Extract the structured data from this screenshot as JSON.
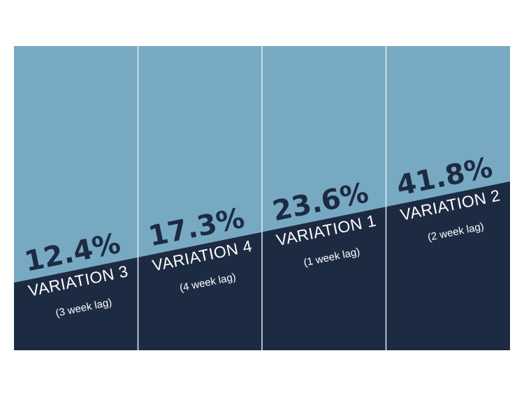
{
  "chart_data": {
    "type": "bar",
    "categories": [
      "VARIATION 3",
      "VARIATION 4",
      "VARIATION 1",
      "VARIATION 2"
    ],
    "subtitles": [
      "(3 week lag)",
      "(4 week lag)",
      "(1 week lag)",
      "(2 week lag)"
    ],
    "values": [
      12.4,
      17.3,
      23.6,
      41.8
    ],
    "value_labels": [
      "12.4%",
      "17.3%",
      "23.6%",
      "41.8%"
    ],
    "title": "",
    "xlabel": "",
    "ylabel": "",
    "grid": false,
    "legend": "none"
  },
  "colors": {
    "upper_fill": "#77a9c3",
    "lower_fill": "#1d2b42",
    "label_dark": "#1d2b42",
    "label_light": "#ffffff",
    "divider": "#e6edf2"
  }
}
